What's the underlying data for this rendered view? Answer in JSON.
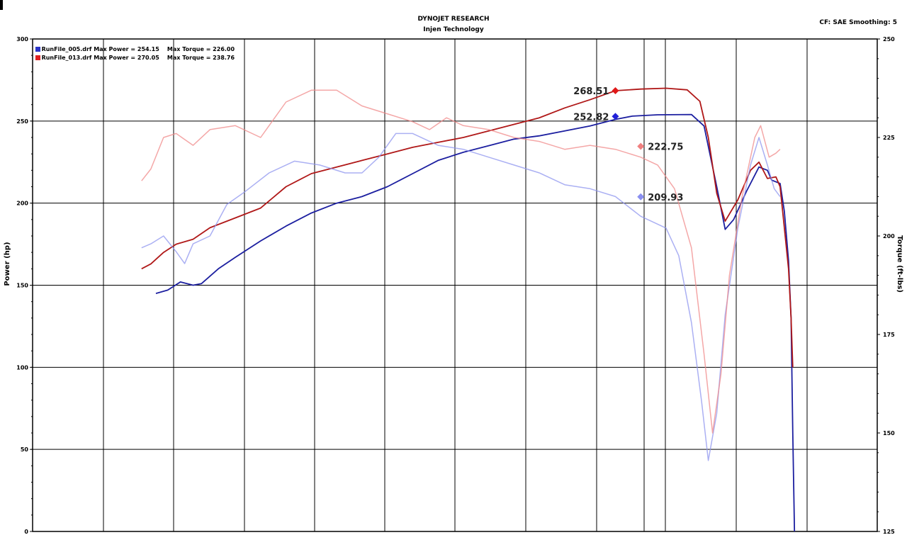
{
  "header": {
    "title": "DYNOJET RESEARCH",
    "subtitle": "Injen Technology",
    "settings": "CF: SAE  Smoothing: 5"
  },
  "legend": [
    {
      "file": "RunFile_005.drf",
      "max_power": "Max Power = 254.15",
      "max_torque": "Max Torque = 226.00",
      "color": "#2b35c9"
    },
    {
      "file": "RunFile_013.drf",
      "max_power": "Max Power = 270.05",
      "max_torque": "Max Torque = 238.76",
      "color": "#e02020"
    }
  ],
  "chart_data": {
    "type": "line",
    "ylabel": "Power (hp)",
    "y2label": "Torque (ft-lbs)",
    "ylim": [
      0,
      300
    ],
    "y2lim": [
      125,
      250
    ],
    "y_ticks": [
      0,
      50,
      100,
      150,
      200,
      250,
      300
    ],
    "y2_ticks": [
      125,
      150,
      175,
      200,
      225,
      250
    ],
    "grid": true,
    "legend_position": "top-left",
    "series": [
      {
        "key": "power_005",
        "axis": "left",
        "color": "#1c1fa0",
        "opacity": 1,
        "width": 1.8,
        "points": [
          [
            0.146,
            145
          ],
          [
            0.16,
            147
          ],
          [
            0.175,
            152
          ],
          [
            0.19,
            150
          ],
          [
            0.2,
            151
          ],
          [
            0.22,
            160
          ],
          [
            0.24,
            167
          ],
          [
            0.27,
            177
          ],
          [
            0.3,
            186
          ],
          [
            0.33,
            194
          ],
          [
            0.36,
            200
          ],
          [
            0.39,
            204
          ],
          [
            0.42,
            210
          ],
          [
            0.45,
            218
          ],
          [
            0.48,
            226
          ],
          [
            0.51,
            231
          ],
          [
            0.54,
            235
          ],
          [
            0.57,
            239
          ],
          [
            0.6,
            241
          ],
          [
            0.63,
            244
          ],
          [
            0.66,
            247
          ],
          [
            0.69,
            251
          ],
          [
            0.71,
            253
          ],
          [
            0.74,
            253.8
          ],
          [
            0.78,
            254
          ],
          [
            0.795,
            247
          ],
          [
            0.81,
            210
          ],
          [
            0.82,
            184
          ],
          [
            0.83,
            190
          ],
          [
            0.845,
            207
          ],
          [
            0.86,
            222
          ],
          [
            0.87,
            220
          ],
          [
            0.875,
            214
          ],
          [
            0.885,
            212
          ],
          [
            0.89,
            195
          ],
          [
            0.895,
            165
          ],
          [
            0.898,
            130
          ],
          [
            0.9,
            60
          ],
          [
            0.902,
            0
          ]
        ]
      },
      {
        "key": "power_013",
        "axis": "left",
        "color": "#b01818",
        "opacity": 1,
        "width": 1.8,
        "points": [
          [
            0.129,
            160
          ],
          [
            0.14,
            163
          ],
          [
            0.155,
            170
          ],
          [
            0.17,
            175
          ],
          [
            0.19,
            178
          ],
          [
            0.21,
            185
          ],
          [
            0.24,
            191
          ],
          [
            0.27,
            197
          ],
          [
            0.3,
            210
          ],
          [
            0.33,
            218
          ],
          [
            0.36,
            222
          ],
          [
            0.39,
            226
          ],
          [
            0.42,
            230
          ],
          [
            0.45,
            234
          ],
          [
            0.48,
            237
          ],
          [
            0.51,
            240
          ],
          [
            0.54,
            244
          ],
          [
            0.57,
            248
          ],
          [
            0.6,
            252
          ],
          [
            0.63,
            258
          ],
          [
            0.66,
            263
          ],
          [
            0.69,
            268.5
          ],
          [
            0.72,
            269.5
          ],
          [
            0.75,
            270
          ],
          [
            0.775,
            269
          ],
          [
            0.79,
            262
          ],
          [
            0.8,
            240
          ],
          [
            0.81,
            206
          ],
          [
            0.82,
            189
          ],
          [
            0.835,
            202
          ],
          [
            0.85,
            220
          ],
          [
            0.86,
            225
          ],
          [
            0.87,
            215
          ],
          [
            0.88,
            216
          ],
          [
            0.885,
            210
          ],
          [
            0.89,
            185
          ],
          [
            0.895,
            160
          ],
          [
            0.898,
            130
          ],
          [
            0.9,
            100
          ]
        ]
      },
      {
        "key": "torque_005",
        "axis": "right",
        "color": "#8f95ef",
        "opacity": 0.75,
        "width": 1.5,
        "points": [
          [
            0.129,
            197
          ],
          [
            0.14,
            198
          ],
          [
            0.155,
            200
          ],
          [
            0.17,
            196
          ],
          [
            0.18,
            193
          ],
          [
            0.19,
            198
          ],
          [
            0.21,
            200
          ],
          [
            0.23,
            208
          ],
          [
            0.25,
            211
          ],
          [
            0.28,
            216
          ],
          [
            0.31,
            219
          ],
          [
            0.34,
            218
          ],
          [
            0.37,
            216
          ],
          [
            0.39,
            216
          ],
          [
            0.41,
            220
          ],
          [
            0.43,
            226
          ],
          [
            0.45,
            226
          ],
          [
            0.48,
            223
          ],
          [
            0.51,
            222
          ],
          [
            0.54,
            220
          ],
          [
            0.57,
            218
          ],
          [
            0.6,
            216
          ],
          [
            0.63,
            213
          ],
          [
            0.66,
            212
          ],
          [
            0.69,
            210
          ],
          [
            0.72,
            205
          ],
          [
            0.75,
            202
          ],
          [
            0.765,
            195
          ],
          [
            0.78,
            178
          ],
          [
            0.792,
            158
          ],
          [
            0.8,
            143
          ],
          [
            0.81,
            155
          ],
          [
            0.82,
            180
          ],
          [
            0.835,
            202
          ],
          [
            0.85,
            218
          ],
          [
            0.86,
            225
          ],
          [
            0.87,
            218
          ],
          [
            0.878,
            212
          ],
          [
            0.885,
            210
          ]
        ]
      },
      {
        "key": "torque_013",
        "axis": "right",
        "color": "#f08a8a",
        "opacity": 0.75,
        "width": 1.5,
        "points": [
          [
            0.129,
            214
          ],
          [
            0.14,
            217
          ],
          [
            0.155,
            225
          ],
          [
            0.17,
            226
          ],
          [
            0.19,
            223
          ],
          [
            0.21,
            227
          ],
          [
            0.24,
            228
          ],
          [
            0.27,
            225
          ],
          [
            0.3,
            234
          ],
          [
            0.33,
            237
          ],
          [
            0.36,
            237
          ],
          [
            0.39,
            233
          ],
          [
            0.42,
            231
          ],
          [
            0.45,
            229
          ],
          [
            0.47,
            227
          ],
          [
            0.49,
            230
          ],
          [
            0.51,
            228
          ],
          [
            0.54,
            227
          ],
          [
            0.57,
            225
          ],
          [
            0.6,
            224
          ],
          [
            0.63,
            222
          ],
          [
            0.66,
            223
          ],
          [
            0.69,
            222
          ],
          [
            0.72,
            220
          ],
          [
            0.74,
            218
          ],
          [
            0.76,
            212
          ],
          [
            0.78,
            197
          ],
          [
            0.795,
            170
          ],
          [
            0.805,
            150
          ],
          [
            0.815,
            165
          ],
          [
            0.825,
            190
          ],
          [
            0.84,
            210
          ],
          [
            0.855,
            225
          ],
          [
            0.862,
            228
          ],
          [
            0.872,
            220
          ],
          [
            0.88,
            221
          ],
          [
            0.885,
            222
          ]
        ]
      }
    ],
    "annotations": [
      {
        "text": "268.51",
        "series": "power_013",
        "x": 0.69,
        "value": 268.51,
        "marker_color": "#e01818",
        "side": "left"
      },
      {
        "text": "252.82",
        "series": "power_005",
        "x": 0.69,
        "value": 252.82,
        "marker_color": "#2020d8",
        "side": "left"
      },
      {
        "text": "222.75",
        "series": "torque_013",
        "x": 0.72,
        "value": 222.75,
        "marker_color": "#f08080",
        "side": "right"
      },
      {
        "text": "209.93",
        "series": "torque_005",
        "x": 0.72,
        "value": 209.93,
        "marker_color": "#8a8ff0",
        "side": "right"
      }
    ]
  }
}
